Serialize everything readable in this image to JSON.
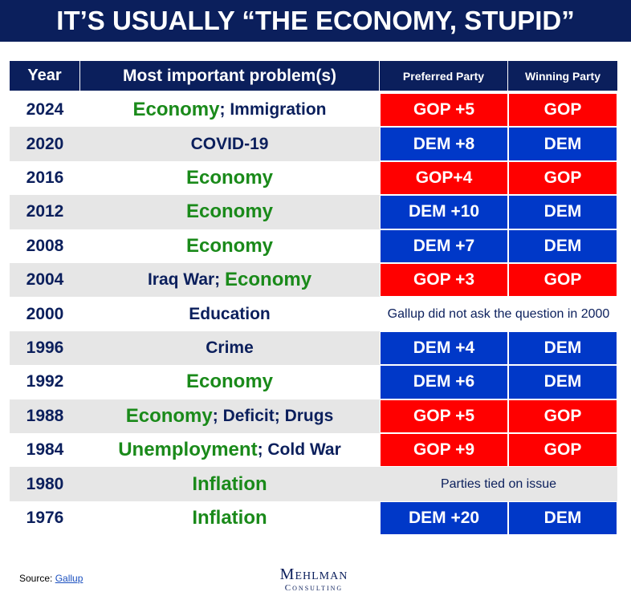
{
  "title": "IT’S USUALLY “THE ECONOMY, STUPID”",
  "chart_data": {
    "type": "table",
    "columns": [
      "Year",
      "Most important problem(s)",
      "Preferred Party",
      "Winning Party"
    ],
    "rows": [
      {
        "year": "2024",
        "problems": [
          {
            "text": "Economy",
            "economy": true
          },
          {
            "text": "; Immigration",
            "economy": false
          }
        ],
        "preferred": "GOP +5",
        "winning": "GOP",
        "party": "GOP",
        "shade": false
      },
      {
        "year": "2020",
        "problems": [
          {
            "text": "COVID-19",
            "economy": false
          }
        ],
        "preferred": "DEM +8",
        "winning": "DEM",
        "party": "DEM",
        "shade": true
      },
      {
        "year": "2016",
        "problems": [
          {
            "text": "Economy",
            "economy": true
          }
        ],
        "preferred": "GOP+4",
        "winning": "GOP",
        "party": "GOP",
        "shade": false
      },
      {
        "year": "2012",
        "problems": [
          {
            "text": "Economy",
            "economy": true
          }
        ],
        "preferred": "DEM +10",
        "winning": "DEM",
        "party": "DEM",
        "shade": true
      },
      {
        "year": "2008",
        "problems": [
          {
            "text": "Economy",
            "economy": true
          }
        ],
        "preferred": "DEM +7",
        "winning": "DEM",
        "party": "DEM",
        "shade": false
      },
      {
        "year": "2004",
        "problems": [
          {
            "text": "Iraq War; ",
            "economy": false
          },
          {
            "text": "Economy",
            "economy": true
          }
        ],
        "preferred": "GOP +3",
        "winning": "GOP",
        "party": "GOP",
        "shade": true
      },
      {
        "year": "2000",
        "problems": [
          {
            "text": "Education",
            "economy": false
          }
        ],
        "note": "Gallup did not ask the question in 2000",
        "shade": false
      },
      {
        "year": "1996",
        "problems": [
          {
            "text": "Crime",
            "economy": false
          }
        ],
        "preferred": "DEM +4",
        "winning": "DEM",
        "party": "DEM",
        "shade": true
      },
      {
        "year": "1992",
        "problems": [
          {
            "text": "Economy",
            "economy": true
          }
        ],
        "preferred": "DEM +6",
        "winning": "DEM",
        "party": "DEM",
        "shade": false
      },
      {
        "year": "1988",
        "problems": [
          {
            "text": "Economy",
            "economy": true
          },
          {
            "text": "; Deficit; Drugs",
            "economy": false
          }
        ],
        "preferred": "GOP +5",
        "winning": "GOP",
        "party": "GOP",
        "shade": true
      },
      {
        "year": "1984",
        "problems": [
          {
            "text": "Unemployment",
            "economy": true
          },
          {
            "text": "; Cold War",
            "economy": false
          }
        ],
        "preferred": "GOP +9",
        "winning": "GOP",
        "party": "GOP",
        "shade": false
      },
      {
        "year": "1980",
        "problems": [
          {
            "text": "Inflation",
            "economy": true
          }
        ],
        "note": "Parties tied on issue",
        "shade": true,
        "noteShade": true
      },
      {
        "year": "1976",
        "problems": [
          {
            "text": "Inflation",
            "economy": true
          }
        ],
        "preferred": "DEM +20",
        "winning": "DEM",
        "party": "DEM",
        "shade": false
      }
    ]
  },
  "colors": {
    "GOP": "#ff0000",
    "DEM": "#0038c8",
    "header": "#0b1f5c",
    "economy": "#1a8a1a",
    "shade": "#e6e6e6"
  },
  "footer": {
    "source_label": "Source:",
    "source_link": "Gallup"
  },
  "logo": {
    "line1": "Mehlman",
    "line2": "Consulting"
  }
}
